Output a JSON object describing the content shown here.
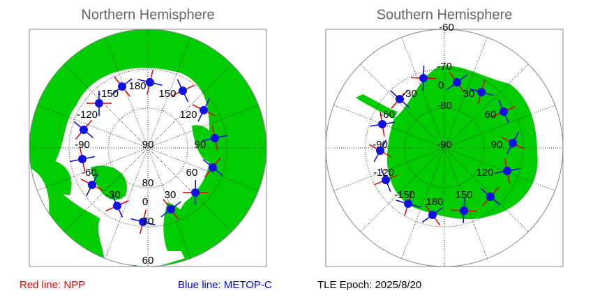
{
  "panels": [
    {
      "title": "Northern Hemisphere",
      "labels": [
        "-150",
        "180",
        "150",
        "-120",
        "120",
        "-90",
        "90",
        "90",
        "-60",
        "60",
        "80",
        "-30",
        "30",
        "0",
        "70",
        "60"
      ]
    },
    {
      "title": "Southern Hemisphere",
      "labels": [
        "-60",
        "-70",
        "0",
        "-30",
        "30",
        "-80",
        "-60",
        "60",
        "-90",
        "-90",
        "90",
        "-120",
        "120",
        "-150",
        "150",
        "180"
      ]
    }
  ],
  "legend": {
    "npp": "Red line: NPP",
    "metop": "Blue line: METOP-C",
    "epoch": "TLE Epoch: 2025/8/20"
  }
}
